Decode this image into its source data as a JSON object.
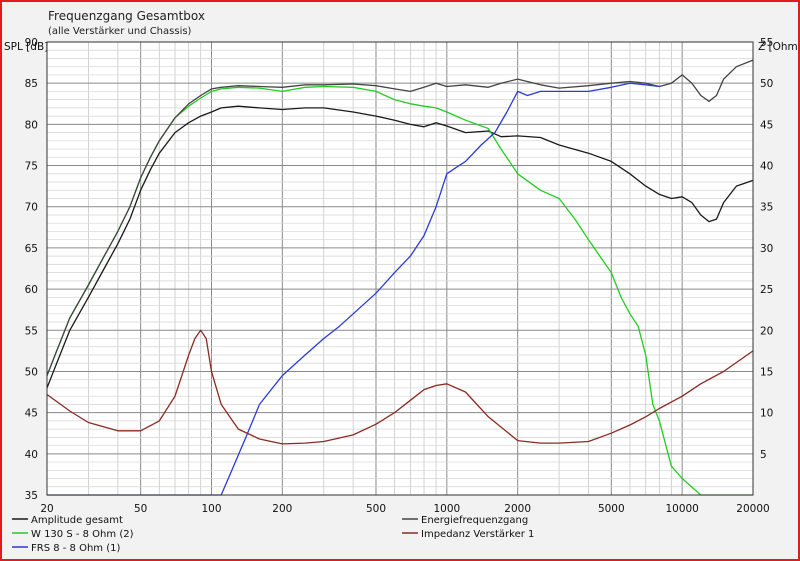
{
  "chart_data": {
    "type": "line",
    "title": "Frequenzgang Gesamtbox",
    "subtitle": "(alle Verstärker und Chassis)",
    "y_left_label": "SPL [dB]",
    "y_right_label": "Z [Ohm]",
    "x_scale": "log",
    "xlim": [
      20,
      20000
    ],
    "ylim": [
      35,
      90
    ],
    "ylim_right": [
      0,
      55
    ],
    "x_ticks": [
      "20",
      "50",
      "100",
      "200",
      "500",
      "1000",
      "2000",
      "5000",
      "10000",
      "20000"
    ],
    "y_ticks": [
      "35",
      "40",
      "45",
      "50",
      "55",
      "60",
      "65",
      "70",
      "75",
      "80",
      "85",
      "90"
    ],
    "y_right_ticks": [
      "5",
      "10",
      "15",
      "20",
      "25",
      "30",
      "35",
      "40",
      "45",
      "50",
      "55"
    ],
    "grid": true,
    "legend_position": "bottom",
    "series": [
      {
        "name": "Amplitude gesamt",
        "color": "#1a1a1a",
        "axis": "left",
        "x": [
          20,
          22,
          25,
          30,
          35,
          40,
          45,
          50,
          55,
          60,
          70,
          80,
          90,
          100,
          110,
          130,
          160,
          200,
          250,
          300,
          400,
          500,
          600,
          700,
          800,
          900,
          1000,
          1200,
          1500,
          1700,
          2000,
          2500,
          3000,
          4000,
          5000,
          6000,
          7000,
          8000,
          9000,
          10000,
          11000,
          12000,
          13000,
          14000,
          15000,
          17000,
          20000
        ],
        "y": [
          48.0,
          51.0,
          55.0,
          59.0,
          62.5,
          65.5,
          68.5,
          72.0,
          74.5,
          76.5,
          79.0,
          80.2,
          81.0,
          81.5,
          82.0,
          82.2,
          82.0,
          81.8,
          82.0,
          82.0,
          81.5,
          81.0,
          80.5,
          80.0,
          79.7,
          80.2,
          79.8,
          79.0,
          79.2,
          78.5,
          78.6,
          78.4,
          77.5,
          76.5,
          75.5,
          74.0,
          72.5,
          71.5,
          71.0,
          71.2,
          70.5,
          69.0,
          68.2,
          68.5,
          70.5,
          72.5,
          73.2
        ]
      },
      {
        "name": "W 130 S - 8 Ohm (2)",
        "color": "#22cc22",
        "axis": "left",
        "x": [
          20,
          22,
          25,
          30,
          35,
          40,
          45,
          50,
          55,
          60,
          70,
          80,
          90,
          100,
          110,
          130,
          160,
          200,
          250,
          300,
          400,
          500,
          600,
          700,
          800,
          900,
          1000,
          1200,
          1500,
          1700,
          2000,
          2500,
          3000,
          3500,
          4000,
          5000,
          5500,
          6000,
          6500,
          7000,
          7500,
          8000,
          9000,
          10000,
          12000,
          15000,
          20000
        ],
        "y": [
          49.5,
          52.5,
          56.5,
          60.5,
          64.0,
          67.0,
          70.0,
          73.5,
          76.0,
          78.0,
          80.8,
          82.2,
          83.2,
          84.0,
          84.3,
          84.5,
          84.4,
          84.0,
          84.5,
          84.6,
          84.5,
          84.0,
          83.0,
          82.5,
          82.2,
          82.0,
          81.5,
          80.5,
          79.5,
          77.0,
          74.0,
          72.0,
          71.0,
          68.5,
          66.0,
          62.0,
          59.0,
          57.0,
          55.5,
          52.0,
          46.0,
          44.0,
          38.5,
          37.0,
          35.0,
          35.0,
          35.0
        ]
      },
      {
        "name": "Energiefrequenzgang",
        "color": "#444444",
        "axis": "left",
        "x": [
          20,
          22,
          25,
          30,
          35,
          40,
          45,
          50,
          55,
          60,
          70,
          80,
          90,
          100,
          110,
          130,
          160,
          200,
          250,
          300,
          400,
          500,
          600,
          700,
          800,
          900,
          1000,
          1200,
          1500,
          1700,
          2000,
          2500,
          3000,
          4000,
          5000,
          6000,
          7000,
          8000,
          9000,
          10000,
          11000,
          12000,
          13000,
          14000,
          15000,
          17000,
          20000
        ],
        "y": [
          49.5,
          52.5,
          56.5,
          60.5,
          64.0,
          67.0,
          70.0,
          73.5,
          76.0,
          78.0,
          80.8,
          82.5,
          83.5,
          84.3,
          84.5,
          84.7,
          84.6,
          84.5,
          84.8,
          84.8,
          84.9,
          84.7,
          84.3,
          84.0,
          84.5,
          85.0,
          84.6,
          84.8,
          84.5,
          85.0,
          85.5,
          84.8,
          84.4,
          84.7,
          85.0,
          85.2,
          85.0,
          84.6,
          85.0,
          86.0,
          85.0,
          83.5,
          82.8,
          83.5,
          85.5,
          87.0,
          87.8
        ]
      },
      {
        "name": "FRS 8 - 8 Ohm (1)",
        "color": "#2b3bd6",
        "axis": "left",
        "x": [
          20,
          50,
          80,
          100,
          110,
          120,
          140,
          160,
          200,
          250,
          300,
          350,
          400,
          500,
          600,
          700,
          800,
          900,
          1000,
          1100,
          1200,
          1400,
          1600,
          1800,
          2000,
          2200,
          2500,
          3000,
          4000,
          5000,
          6000,
          7000,
          8000
        ],
        "y": [
          35.0,
          35.0,
          35.0,
          35.0,
          35.0,
          37.5,
          42.0,
          46.0,
          49.5,
          52.0,
          54.0,
          55.5,
          57.0,
          59.5,
          62.0,
          64.0,
          66.5,
          70.0,
          74.0,
          74.8,
          75.5,
          77.5,
          79.0,
          81.5,
          84.0,
          83.5,
          84.0,
          84.0,
          84.0,
          84.5,
          85.0,
          84.8,
          84.6
        ]
      },
      {
        "name": "Impedanz Verstärker 1",
        "color": "#8b2a22",
        "axis": "right",
        "x": [
          20,
          25,
          30,
          40,
          50,
          60,
          70,
          80,
          85,
          90,
          95,
          100,
          110,
          130,
          160,
          200,
          250,
          300,
          400,
          500,
          600,
          700,
          800,
          900,
          1000,
          1200,
          1500,
          2000,
          2500,
          3000,
          4000,
          5000,
          6000,
          7000,
          8000,
          10000,
          12000,
          15000,
          20000
        ],
        "y": [
          12.2,
          10.2,
          8.8,
          7.8,
          7.8,
          9.0,
          12.0,
          17.0,
          19.0,
          20.0,
          19.0,
          15.0,
          11.0,
          8.0,
          6.8,
          6.2,
          6.3,
          6.5,
          7.3,
          8.6,
          10.0,
          11.5,
          12.8,
          13.3,
          13.5,
          12.5,
          9.5,
          6.6,
          6.3,
          6.3,
          6.5,
          7.5,
          8.5,
          9.5,
          10.5,
          12.0,
          13.5,
          15.0,
          17.5
        ]
      }
    ]
  }
}
